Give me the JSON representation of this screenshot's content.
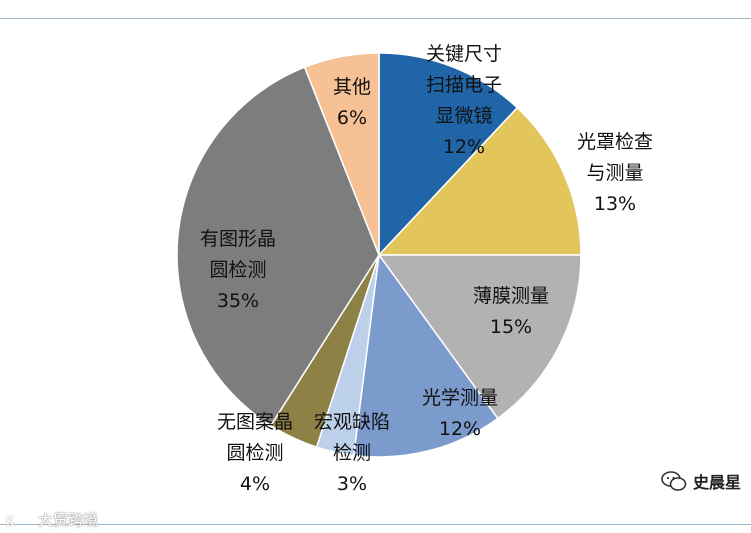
{
  "chart_data": {
    "type": "pie",
    "title": "",
    "start_angle_deg": 0,
    "direction": "clockwise",
    "slices": [
      {
        "label_lines": [
          "关键尺寸",
          "扫描电子",
          "显微镜"
        ],
        "value": 12,
        "value_label": "12%",
        "color": "#1f65a8"
      },
      {
        "label_lines": [
          "光罩检查",
          "与测量"
        ],
        "value": 13,
        "value_label": "13%",
        "color": "#e3c65b"
      },
      {
        "label_lines": [
          "薄膜测量"
        ],
        "value": 15,
        "value_label": "15%",
        "color": "#b2b2b2"
      },
      {
        "label_lines": [
          "光学测量"
        ],
        "value": 12,
        "value_label": "12%",
        "color": "#7b9bcc"
      },
      {
        "label_lines": [
          "宏观缺陷",
          "检测"
        ],
        "value": 3,
        "value_label": "3%",
        "color": "#bcd1e9"
      },
      {
        "label_lines": [
          "无图案晶",
          "圆检测"
        ],
        "value": 4,
        "value_label": "4%",
        "color": "#8d8146"
      },
      {
        "label_lines": [
          "有图形晶",
          "圆检测"
        ],
        "value": 35,
        "value_label": "35%",
        "color": "#7d7d7d"
      },
      {
        "label_lines": [
          "其他"
        ],
        "value": 6,
        "value_label": "6%",
        "color": "#f7c196"
      }
    ]
  },
  "watermarks": {
    "left_badge": "K",
    "left_text": "大贸跨境",
    "right_text": "史晨星"
  }
}
